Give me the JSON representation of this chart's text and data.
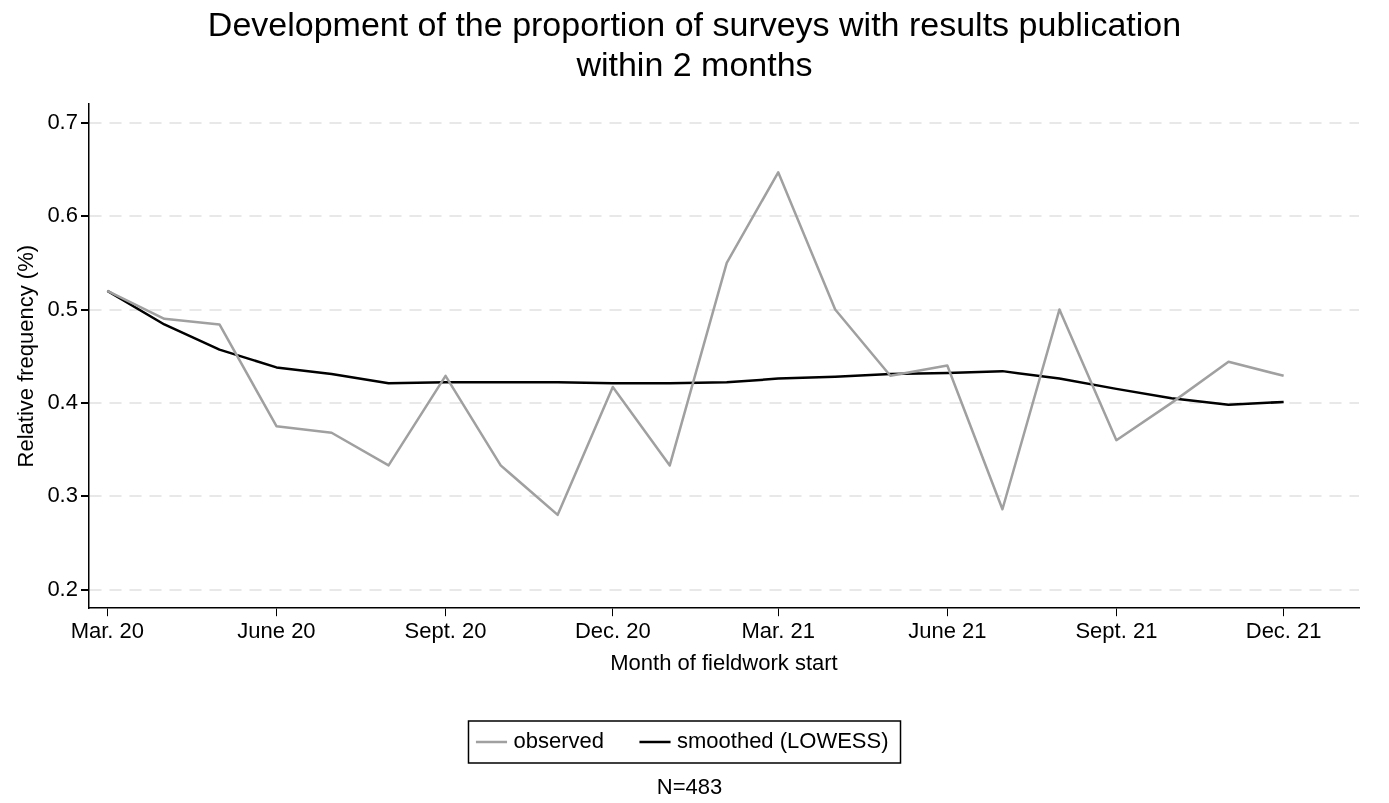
{
  "chart_data": {
    "type": "line",
    "title": "Development of the proportion of surveys with results publication within 2 months",
    "xlabel": "Month of fieldwork start",
    "ylabel": "Relative frequency (%)",
    "x": [
      "2020-03",
      "2020-04",
      "2020-05",
      "2020-06",
      "2020-07",
      "2020-08",
      "2020-09",
      "2020-10",
      "2020-11",
      "2020-12",
      "2021-01",
      "2021-02",
      "2021-03",
      "2021-04",
      "2021-05",
      "2021-06",
      "2021-07",
      "2021-08",
      "2021-09",
      "2021-10",
      "2021-11",
      "2021-12"
    ],
    "series": [
      {
        "name": "observed",
        "color": "#a0a0a0",
        "values": [
          0.52,
          0.49,
          0.484,
          0.375,
          0.368,
          0.333,
          0.429,
          0.333,
          0.28,
          0.417,
          0.333,
          0.55,
          0.647,
          0.5,
          0.429,
          0.44,
          0.286,
          0.5,
          0.36,
          0.4,
          0.444,
          0.429
        ]
      },
      {
        "name": "smoothed (LOWESS)",
        "color": "#000000",
        "values": [
          0.52,
          0.484,
          0.457,
          0.438,
          0.431,
          0.421,
          0.422,
          0.422,
          0.422,
          0.421,
          0.421,
          0.422,
          0.426,
          0.428,
          0.431,
          0.432,
          0.434,
          0.426,
          0.415,
          0.405,
          0.398,
          0.401
        ]
      }
    ],
    "xlim": [
      "2020-02-20",
      "2022-01-11"
    ],
    "xticks": [
      {
        "value": "2020-03",
        "label": "Mar. 20"
      },
      {
        "value": "2020-06",
        "label": "June 20"
      },
      {
        "value": "2020-09",
        "label": "Sept. 20"
      },
      {
        "value": "2020-12",
        "label": "Dec. 20"
      },
      {
        "value": "2021-03",
        "label": "Mar. 21"
      },
      {
        "value": "2021-06",
        "label": "June 21"
      },
      {
        "value": "2021-09",
        "label": "Sept. 21"
      },
      {
        "value": "2021-12",
        "label": "Dec. 21"
      }
    ],
    "ylim": [
      0.18,
      0.72
    ],
    "yticks": [
      0.2,
      0.3,
      0.4,
      0.5,
      0.6,
      0.7
    ],
    "grid": "y",
    "legend": "bottom",
    "marker": "none",
    "line_style": "solid",
    "annotations": [
      "N=483"
    ]
  }
}
